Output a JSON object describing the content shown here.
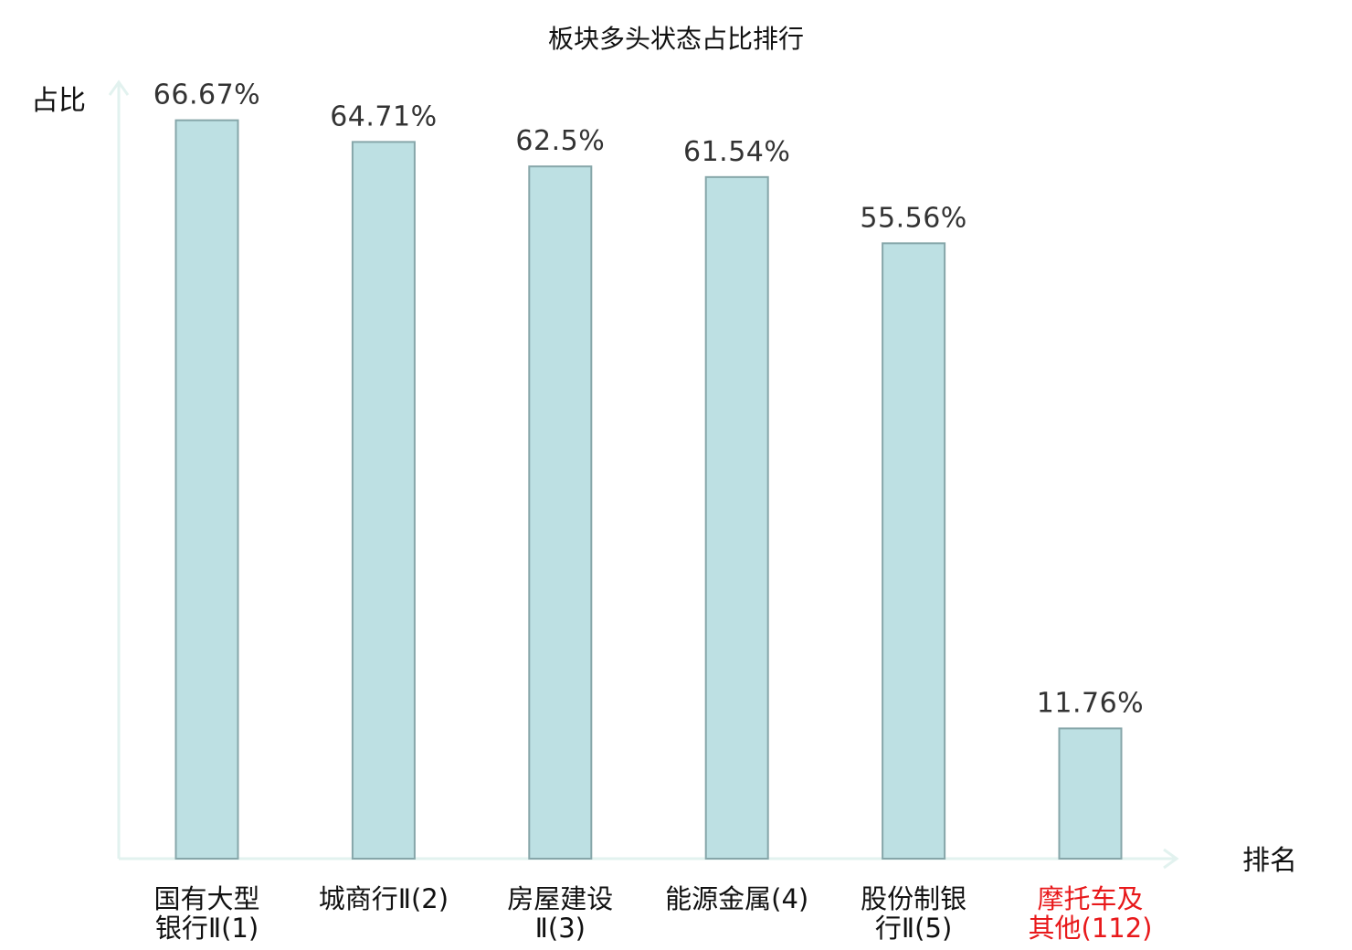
{
  "chart_data": {
    "type": "bar",
    "title": "板块多头状态占比排行",
    "ylabel": "占比",
    "xlabel": "排名",
    "ylim": [
      0,
      70
    ],
    "grid": false,
    "legend": "none",
    "categories": [
      [
        "国有大型",
        "银行Ⅱ(1)"
      ],
      [
        "城商行Ⅱ(2)"
      ],
      [
        "房屋建设",
        "Ⅱ(3)"
      ],
      [
        "能源金属(4)"
      ],
      [
        "股份制银",
        "行Ⅱ(5)"
      ],
      [
        "摩托车及",
        "其他(112)"
      ]
    ],
    "values": [
      66.67,
      64.71,
      62.5,
      61.54,
      55.56,
      11.76
    ],
    "value_labels": [
      "66.67%",
      "64.71%",
      "62.5%",
      "61.54%",
      "55.56%",
      "11.76%"
    ],
    "highlight_index": 5,
    "colors": {
      "bar_fill": "#bde0e3",
      "bar_stroke": "#86a6a9",
      "axis": "#e2f2ef",
      "label_normal": "#111111",
      "label_highlight": "#e8191b"
    }
  }
}
